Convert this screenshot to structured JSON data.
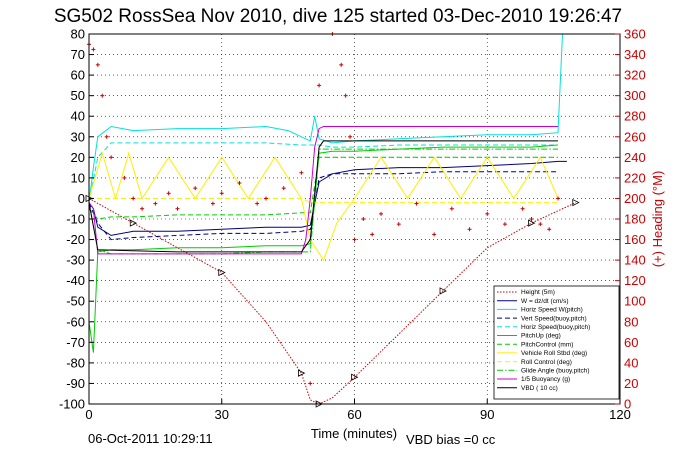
{
  "figure": {
    "title": "SG502 RossSea Nov 2010, dive 125 started 03-Dec-2010 19:26:47",
    "timestamp": "06-Oct-2011 10:29:11",
    "vbd_bias": "VBD bias =0 cc"
  },
  "chart_data": {
    "type": "line",
    "title": "SG502 RossSea Nov 2010, dive 125 started 03-Dec-2010 19:26:47",
    "xlabel": "Time (minutes)",
    "ylabel": "",
    "y2label": "(+) Heading (°M)",
    "xlim": [
      0,
      120
    ],
    "ylim": [
      -100,
      80
    ],
    "y2lim": [
      0,
      360
    ],
    "xticks": [
      "0",
      "30",
      "60",
      "90",
      "120"
    ],
    "yticks": [
      "-100",
      "-90",
      "-80",
      "-70",
      "-60",
      "-50",
      "-40",
      "-30",
      "-20",
      "-10",
      "0",
      "10",
      "20",
      "30",
      "40",
      "50",
      "60",
      "70",
      "80"
    ],
    "y2ticks": [
      "0",
      "20",
      "40",
      "60",
      "80",
      "100",
      "120",
      "140",
      "160",
      "180",
      "200",
      "220",
      "240",
      "260",
      "280",
      "300",
      "320",
      "340",
      "360"
    ],
    "grid": true,
    "legend_position": "bottom-right",
    "series": [
      {
        "name": "Height (5m)",
        "color": "#cc0000",
        "style": "dotted-plus",
        "axis": "left",
        "x": [
          0,
          5,
          10,
          20,
          30,
          40,
          48,
          50,
          52,
          55,
          60,
          70,
          80,
          90,
          100,
          106,
          110
        ],
        "y": [
          0,
          -6,
          -12,
          -24,
          -36,
          -60,
          -85,
          -98,
          -100,
          -97,
          -87,
          -66,
          -45,
          -24,
          -12,
          -6,
          -2
        ]
      },
      {
        "name": "W = dz/dt (cm/s)",
        "color": "#000080",
        "style": "solid",
        "axis": "left",
        "x": [
          0,
          1,
          2,
          5,
          10,
          20,
          30,
          40,
          48,
          50,
          52,
          55,
          60,
          70,
          80,
          90,
          100,
          106,
          108
        ],
        "y": [
          -2,
          -5,
          -14,
          -18,
          -16,
          -16,
          -15,
          -14,
          -14,
          -13,
          8,
          12,
          14,
          15,
          15,
          16,
          17,
          18,
          18
        ]
      },
      {
        "name": "Horiz Speed W(pitch)",
        "color": "#00e0e0",
        "style": "solid",
        "axis": "left",
        "x": [
          0,
          1,
          2,
          5,
          10,
          20,
          30,
          40,
          45,
          48,
          50,
          51,
          52,
          55,
          60,
          70,
          80,
          90,
          100,
          106,
          107
        ],
        "y": [
          -2,
          15,
          30,
          35,
          33,
          34,
          34,
          35,
          33,
          30,
          28,
          40,
          29,
          27,
          28,
          29,
          30,
          31,
          31,
          32,
          80
        ]
      },
      {
        "name": "Vert Speed(buoy,pitch)",
        "color": "#000080",
        "style": "dashed",
        "axis": "left",
        "x": [
          0,
          2,
          5,
          10,
          20,
          30,
          40,
          48,
          50,
          52,
          55,
          60,
          70,
          80,
          90,
          100,
          106
        ],
        "y": [
          -2,
          -12,
          -20,
          -19,
          -18,
          -17,
          -17,
          -16,
          -15,
          10,
          12,
          12,
          12,
          13,
          13,
          13,
          13
        ]
      },
      {
        "name": "Horiz Speed(buoy,pitch)",
        "color": "#00e0e0",
        "style": "dashed",
        "axis": "left",
        "x": [
          0,
          2,
          5,
          10,
          20,
          30,
          40,
          48,
          50,
          52,
          55,
          60,
          70,
          80,
          90,
          100,
          106
        ],
        "y": [
          -2,
          20,
          27,
          27,
          27,
          27,
          27,
          26,
          26,
          26,
          25,
          25,
          26,
          26,
          26,
          26,
          26
        ]
      },
      {
        "name": "PitchUp (deg)",
        "color": "#00cc00",
        "style": "solid",
        "axis": "left",
        "x": [
          0,
          1,
          2,
          5,
          10,
          20,
          30,
          40,
          48,
          50,
          52,
          55,
          60,
          70,
          80,
          90,
          100,
          106
        ],
        "y": [
          -60,
          -75,
          -26,
          -25,
          -25,
          -24,
          -24,
          -23,
          -23,
          -22,
          22,
          23,
          23,
          24,
          25,
          25,
          25,
          26
        ]
      },
      {
        "name": "PitchControl (mm)",
        "color": "#00cc00",
        "style": "dashed",
        "axis": "left",
        "x": [
          0,
          2,
          5,
          10,
          20,
          30,
          40,
          48,
          50,
          52,
          55,
          60,
          70,
          80,
          90,
          100,
          106
        ],
        "y": [
          -5,
          -10,
          -9,
          -9,
          -8,
          -8,
          -8,
          -7,
          -7,
          20,
          20,
          20,
          20,
          20,
          20,
          20,
          20
        ]
      },
      {
        "name": "Vehicle Roll Stbd (deg)",
        "color": "#ffee00",
        "style": "solid",
        "axis": "left",
        "x": [
          0,
          3,
          6,
          9,
          12,
          18,
          24,
          30,
          36,
          42,
          48,
          50,
          53,
          56,
          60,
          66,
          72,
          78,
          84,
          90,
          96,
          102,
          106
        ],
        "y": [
          0,
          22,
          0,
          22,
          0,
          20,
          0,
          20,
          0,
          20,
          0,
          -20,
          -30,
          -12,
          0,
          20,
          0,
          20,
          0,
          20,
          0,
          20,
          0
        ]
      },
      {
        "name": "Roll Control (deg)",
        "color": "#ffee00",
        "style": "dashed",
        "axis": "left",
        "x": [
          0,
          10,
          20,
          30,
          40,
          48,
          50,
          52,
          60,
          70,
          80,
          90,
          100,
          106
        ],
        "y": [
          0,
          0,
          0,
          0,
          0,
          0,
          -2,
          -2,
          -2,
          -2,
          -2,
          -2,
          -2,
          -2
        ]
      },
      {
        "name": "Glide Angle (buoy,pitch)",
        "color": "#00cc00",
        "style": "dashdot",
        "axis": "left",
        "x": [
          0,
          2,
          5,
          10,
          20,
          30,
          40,
          48,
          50,
          52,
          55,
          60,
          70,
          80,
          90,
          100,
          106
        ],
        "y": [
          -2,
          -25,
          -27,
          -27,
          -27,
          -27,
          -26,
          -26,
          -26,
          24,
          24,
          24,
          24,
          24,
          24,
          24,
          24
        ]
      },
      {
        "name": "1/5 Buoyancy (g)",
        "color": "#cc00cc",
        "style": "solid",
        "axis": "left",
        "x": [
          0,
          1,
          2,
          20,
          40,
          48,
          49,
          50,
          51,
          52,
          53,
          100,
          106
        ],
        "y": [
          -2,
          -5,
          -27,
          -27,
          -27,
          -27,
          -20,
          0,
          25,
          34,
          35,
          35,
          35
        ]
      },
      {
        "name": "VBD ( 10 cc)",
        "color": "#000000",
        "style": "solid",
        "axis": "left",
        "x": [
          0,
          2,
          20,
          40,
          48,
          50,
          52,
          53,
          100,
          106
        ],
        "y": [
          -2,
          -25,
          -26,
          -26,
          -26,
          -20,
          25,
          28,
          28,
          28
        ]
      },
      {
        "name": "Heading",
        "color": "#cc0000",
        "style": "plus",
        "axis": "right",
        "x": [
          0,
          1,
          2,
          3,
          4,
          5,
          8,
          10,
          12,
          15,
          18,
          20,
          24,
          28,
          30,
          34,
          38,
          40,
          44,
          48,
          50,
          52,
          55,
          57,
          58,
          59,
          60,
          62,
          64,
          66,
          70,
          74,
          78,
          82,
          86,
          90,
          94,
          98,
          100,
          102,
          104,
          106
        ],
        "y": [
          350,
          345,
          330,
          300,
          260,
          240,
          220,
          200,
          190,
          195,
          205,
          190,
          210,
          195,
          205,
          215,
          195,
          200,
          210,
          225,
          20,
          310,
          360,
          330,
          300,
          260,
          160,
          180,
          165,
          185,
          175,
          195,
          165,
          190,
          170,
          185,
          175,
          190,
          180,
          175,
          170,
          200
        ]
      }
    ]
  }
}
